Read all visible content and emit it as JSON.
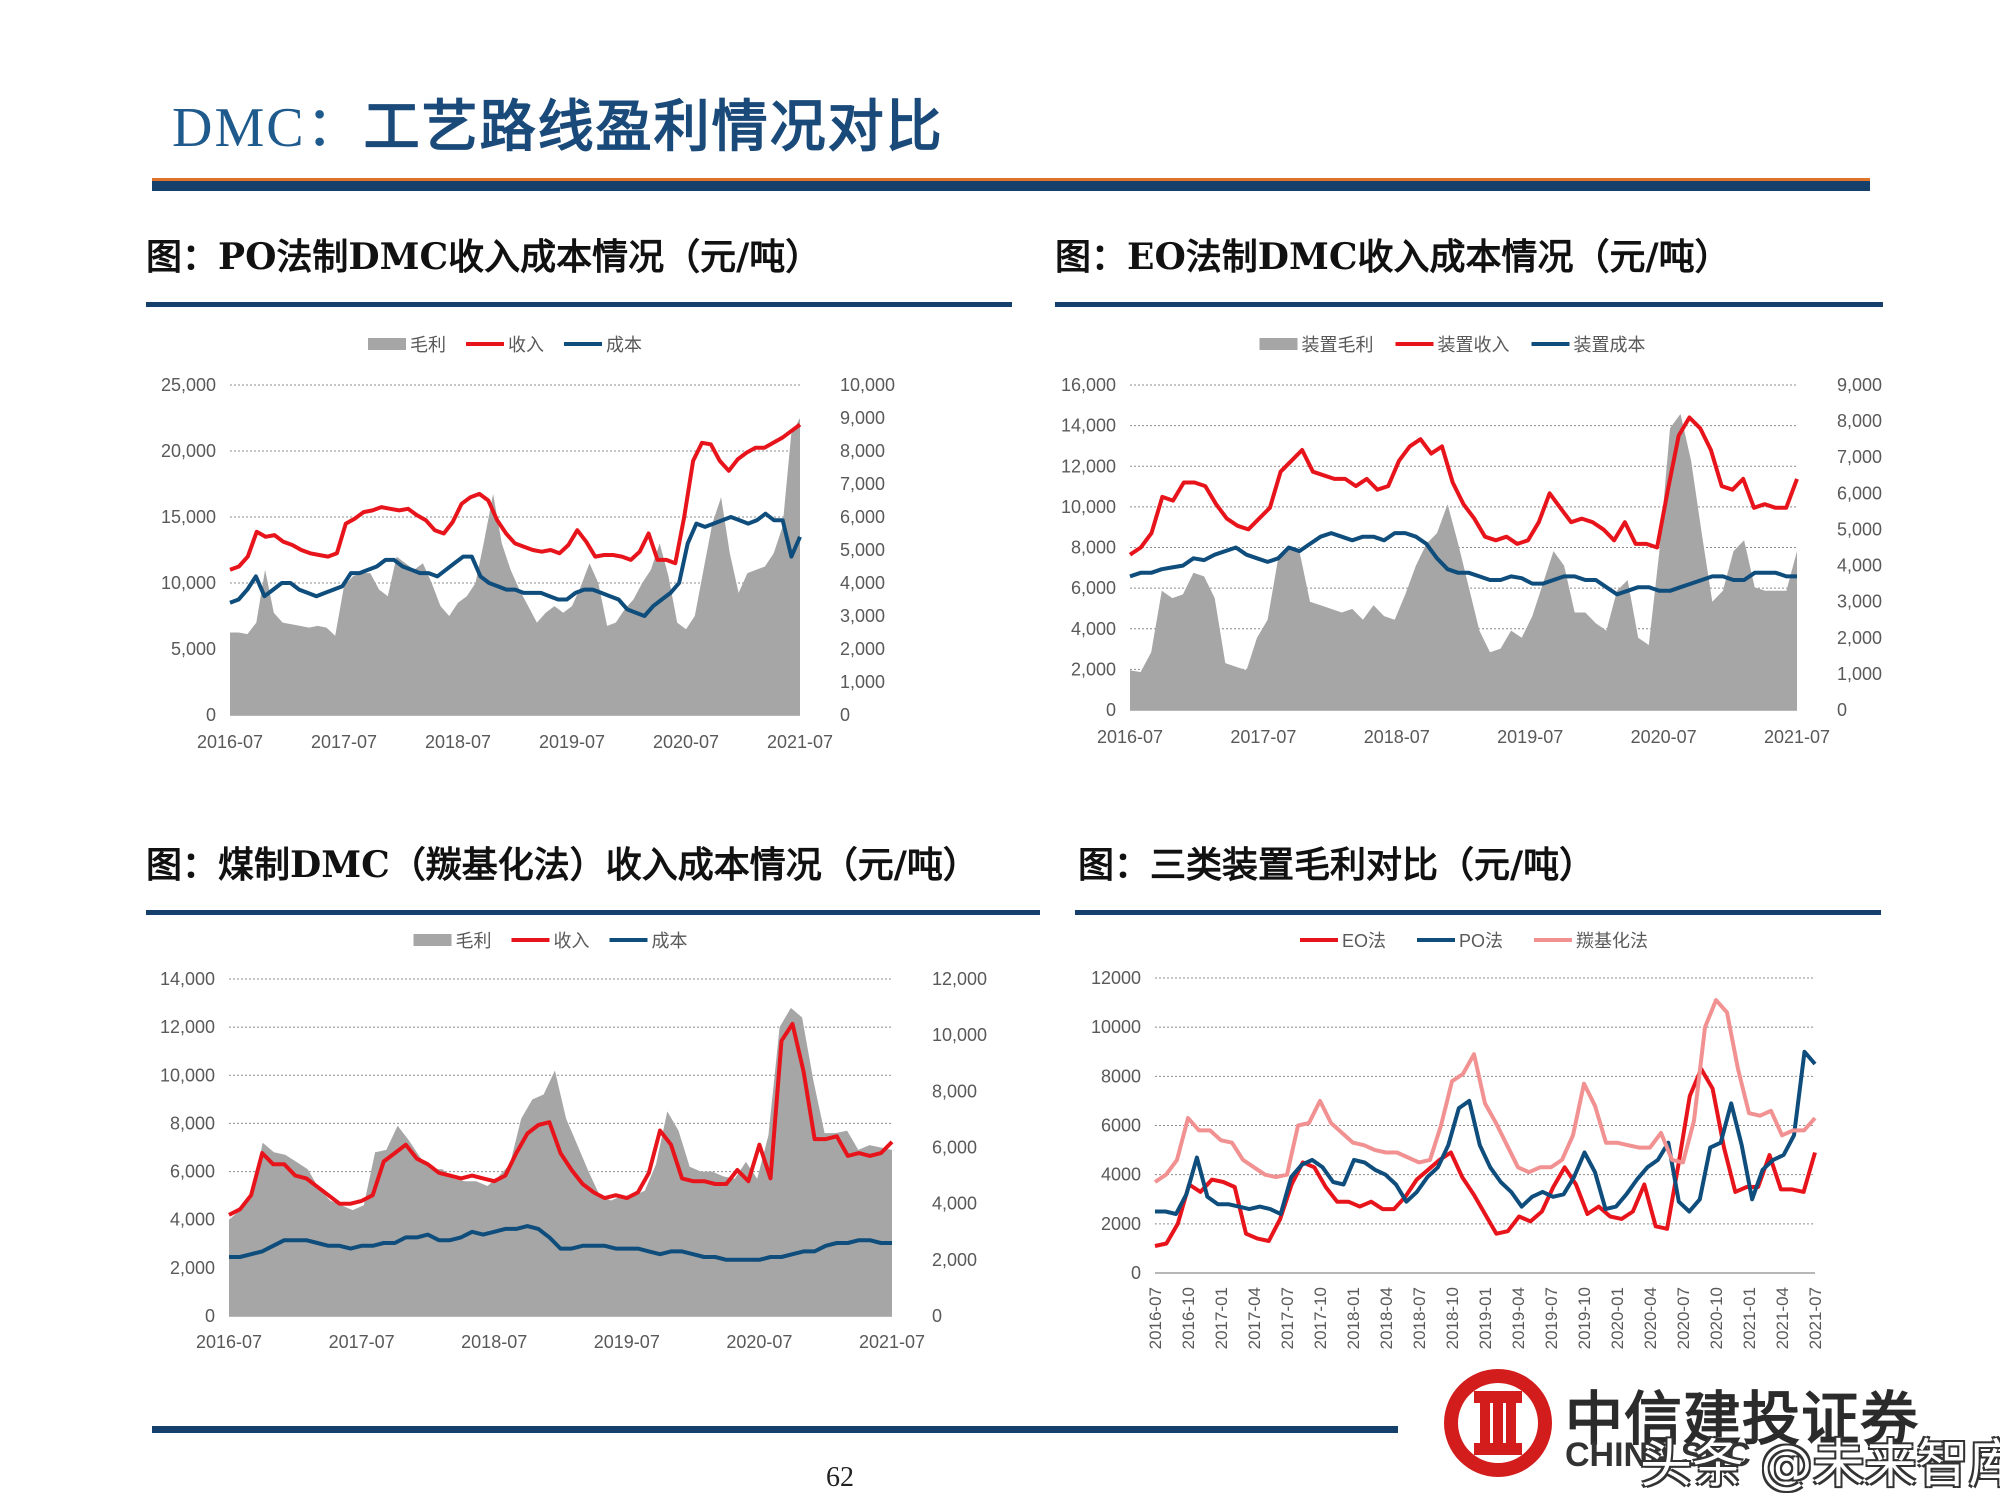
{
  "page": {
    "title_prefix": "DMC：",
    "title_main": "工艺路线盈利情况对比",
    "page_number": "62",
    "logo_cn": "中信建投证券",
    "logo_en": "CHINA SEC",
    "watermark": "头条 @未来智库"
  },
  "colors": {
    "accent": "#15406b",
    "red": "#e8141b",
    "blue": "#0e4d7c",
    "gray": "#a6a6a6",
    "pink": "#f19191"
  },
  "chart_data": [
    {
      "id": "po",
      "title": "图：PO法制DMC收入成本情况（元/吨）",
      "type": "area",
      "legend": [
        "毛利",
        "收入",
        "成本"
      ],
      "legend_position": "top",
      "x_ticks": [
        "2016-07",
        "2017-07",
        "2018-07",
        "2019-07",
        "2020-07",
        "2021-07"
      ],
      "x_start": "2016-07",
      "left_axis": {
        "min": 0,
        "max": 25000,
        "ticks": [
          "0",
          "5,000",
          "10,000",
          "15,000",
          "20,000",
          "25,000"
        ]
      },
      "right_axis": {
        "min": 0,
        "max": 10000,
        "ticks": [
          "0",
          "1,000",
          "2,000",
          "3,000",
          "4,000",
          "5,000",
          "6,000",
          "7,000",
          "8,000",
          "9,000",
          "10,000"
        ]
      },
      "grid": true,
      "area": {
        "name": "毛利",
        "axis": "right",
        "values": [
          2500,
          2500,
          2450,
          2800,
          4400,
          3100,
          2800,
          2750,
          2700,
          2650,
          2700,
          2650,
          2400,
          3900,
          4200,
          4300,
          4300,
          3800,
          3600,
          4800,
          4600,
          4400,
          4600,
          4000,
          3300,
          3000,
          3400,
          3600,
          4000,
          5300,
          6700,
          5200,
          4400,
          3800,
          3300,
          2800,
          3100,
          3300,
          3100,
          3300,
          3900,
          4600,
          4000,
          2700,
          2800,
          3200,
          3500,
          4000,
          4400,
          5200,
          4200,
          2800,
          2600,
          3000,
          4400,
          5800,
          6600,
          4900,
          3700,
          4300,
          4400,
          4500,
          4900,
          5700,
          8500,
          9000
        ]
      },
      "series": [
        {
          "name": "收入",
          "axis": "right",
          "color": "#e8141b",
          "values": [
            4400,
            4500,
            4800,
            5550,
            5400,
            5450,
            5250,
            5150,
            5000,
            4900,
            4850,
            4800,
            4900,
            5800,
            5950,
            6150,
            6200,
            6300,
            6250,
            6200,
            6250,
            6050,
            5900,
            5600,
            5500,
            5850,
            6400,
            6600,
            6700,
            6500,
            5900,
            5500,
            5200,
            5100,
            5000,
            4950,
            5000,
            4900,
            5150,
            5600,
            5250,
            4800,
            4850,
            4850,
            4800,
            4700,
            4950,
            5500,
            4700,
            4700,
            4600,
            6000,
            7700,
            8250,
            8200,
            7700,
            7400,
            7750,
            7950,
            8100,
            8100,
            8250,
            8400,
            8600,
            8800
          ]
        },
        {
          "name": "成本",
          "axis": "right",
          "color": "#0e4d7c",
          "values": [
            3400,
            3500,
            3800,
            4200,
            3600,
            3800,
            4000,
            4000,
            3800,
            3700,
            3600,
            3700,
            3800,
            3900,
            4300,
            4300,
            4400,
            4500,
            4700,
            4700,
            4500,
            4400,
            4300,
            4300,
            4200,
            4400,
            4600,
            4800,
            4800,
            4200,
            4000,
            3900,
            3800,
            3800,
            3700,
            3700,
            3700,
            3600,
            3500,
            3500,
            3700,
            3800,
            3800,
            3700,
            3600,
            3500,
            3200,
            3100,
            3000,
            3300,
            3500,
            3700,
            4000,
            5200,
            5800,
            5700,
            5800,
            5900,
            6000,
            5900,
            5800,
            5900,
            6100,
            5900,
            5900,
            4800,
            5400
          ]
        }
      ]
    },
    {
      "id": "eo",
      "title": "图：EO法制DMC收入成本情况（元/吨）",
      "type": "area",
      "legend": [
        "装置毛利",
        "装置收入",
        "装置成本"
      ],
      "legend_position": "top",
      "x_ticks": [
        "2016-07",
        "2017-07",
        "2018-07",
        "2019-07",
        "2020-07",
        "2021-07"
      ],
      "x_start": "2016-07",
      "left_axis": {
        "min": 0,
        "max": 16000,
        "ticks": [
          "0",
          "2,000",
          "4,000",
          "6,000",
          "8,000",
          "10,000",
          "12,000",
          "14,000",
          "16,000"
        ]
      },
      "right_axis": {
        "min": 0,
        "max": 9000,
        "ticks": [
          "0",
          "1,000",
          "2,000",
          "3,000",
          "4,000",
          "5,000",
          "6,000",
          "7,000",
          "8,000",
          "9,000"
        ]
      },
      "grid": true,
      "area": {
        "name": "装置毛利",
        "axis": "right",
        "values": [
          1100,
          1050,
          1600,
          3300,
          3100,
          3200,
          3800,
          3700,
          3100,
          1300,
          1200,
          1100,
          2000,
          2500,
          4200,
          4500,
          4400,
          3000,
          2900,
          2800,
          2700,
          2800,
          2500,
          2900,
          2600,
          2500,
          3200,
          4000,
          4600,
          4900,
          5700,
          4600,
          3400,
          2200,
          1600,
          1700,
          2200,
          2000,
          2600,
          3500,
          4400,
          4000,
          2700,
          2700,
          2400,
          2200,
          3300,
          3600,
          2000,
          1800,
          4400,
          7800,
          8200,
          6900,
          4900,
          3000,
          3300,
          4400,
          4700,
          3400,
          3300,
          3300,
          3300,
          4400
        ]
      },
      "series": [
        {
          "name": "装置收入",
          "axis": "right",
          "color": "#e8141b",
          "values": [
            4300,
            4500,
            4900,
            5900,
            5800,
            6300,
            6300,
            6200,
            5700,
            5300,
            5100,
            5000,
            5300,
            5600,
            6600,
            6900,
            7200,
            6600,
            6500,
            6400,
            6400,
            6200,
            6400,
            6100,
            6200,
            6900,
            7300,
            7500,
            7100,
            7300,
            6300,
            5700,
            5300,
            4800,
            4700,
            4800,
            4600,
            4700,
            5200,
            6000,
            5600,
            5200,
            5300,
            5200,
            5000,
            4700,
            5200,
            4600,
            4600,
            4500,
            6100,
            7600,
            8100,
            7800,
            7200,
            6200,
            6100,
            6400,
            5600,
            5700,
            5600,
            5600,
            6400
          ]
        },
        {
          "name": "装置成本",
          "axis": "right",
          "color": "#0e4d7c",
          "values": [
            3700,
            3800,
            3800,
            3900,
            3950,
            4000,
            4200,
            4150,
            4300,
            4400,
            4500,
            4300,
            4200,
            4100,
            4200,
            4500,
            4400,
            4600,
            4800,
            4900,
            4800,
            4700,
            4800,
            4800,
            4700,
            4900,
            4900,
            4800,
            4600,
            4200,
            3900,
            3800,
            3800,
            3700,
            3600,
            3600,
            3700,
            3650,
            3500,
            3500,
            3600,
            3700,
            3700,
            3600,
            3600,
            3400,
            3200,
            3300,
            3400,
            3400,
            3300,
            3300,
            3400,
            3500,
            3600,
            3700,
            3700,
            3600,
            3600,
            3800,
            3800,
            3800,
            3700,
            3700
          ]
        }
      ]
    },
    {
      "id": "coal",
      "title": "图：煤制DMC（羰基化法）收入成本情况（元/吨）",
      "type": "area",
      "legend": [
        "毛利",
        "收入",
        "成本"
      ],
      "legend_position": "top",
      "x_ticks": [
        "2016-07",
        "2017-07",
        "2018-07",
        "2019-07",
        "2020-07",
        "2021-07"
      ],
      "x_start": "2016-07",
      "left_axis": {
        "min": 0,
        "max": 14000,
        "ticks": [
          "0",
          "2,000",
          "4,000",
          "6,000",
          "8,000",
          "10,000",
          "12,000",
          "14,000"
        ]
      },
      "right_axis": {
        "min": 0,
        "max": 12000,
        "ticks": [
          "0",
          "2,000",
          "4,000",
          "6,000",
          "8,000",
          "10,000",
          "12,000"
        ]
      },
      "grid": true,
      "area": {
        "name": "毛利",
        "axis": "left",
        "values": [
          4000,
          4400,
          5000,
          7200,
          6800,
          6700,
          6400,
          6100,
          5300,
          4800,
          4600,
          4400,
          4600,
          6800,
          6900,
          7900,
          7300,
          6600,
          6100,
          6100,
          5700,
          5600,
          5600,
          5400,
          5800,
          6300,
          8200,
          9000,
          9200,
          10200,
          8200,
          7100,
          6000,
          5000,
          4800,
          5000,
          5000,
          5200,
          6300,
          8500,
          7700,
          6200,
          6000,
          6000,
          5800,
          5700,
          6400,
          5700,
          7500,
          12000,
          12800,
          12400,
          9800,
          7600,
          7600,
          7700,
          6900,
          7100,
          7000,
          6900
        ]
      },
      "series": [
        {
          "name": "收入",
          "axis": "right",
          "color": "#e8141b",
          "values": [
            3600,
            3800,
            4300,
            5800,
            5400,
            5400,
            5000,
            4900,
            4600,
            4300,
            4000,
            4000,
            4100,
            4300,
            5500,
            5800,
            6100,
            5600,
            5400,
            5100,
            5000,
            4900,
            5000,
            4900,
            4800,
            5000,
            5800,
            6500,
            6800,
            6900,
            5800,
            5200,
            4700,
            4400,
            4200,
            4300,
            4200,
            4400,
            5100,
            6600,
            6100,
            4900,
            4800,
            4800,
            4700,
            4700,
            5200,
            4800,
            6100,
            4900,
            9800,
            10400,
            8700,
            6300,
            6300,
            6400,
            5700,
            5800,
            5700,
            5800,
            6200
          ]
        },
        {
          "name": "成本",
          "axis": "right",
          "color": "#0e4d7c",
          "values": [
            2100,
            2100,
            2200,
            2300,
            2500,
            2700,
            2700,
            2700,
            2600,
            2500,
            2500,
            2400,
            2500,
            2500,
            2600,
            2600,
            2800,
            2800,
            2900,
            2700,
            2700,
            2800,
            3000,
            2900,
            3000,
            3100,
            3100,
            3200,
            3100,
            2800,
            2400,
            2400,
            2500,
            2500,
            2500,
            2400,
            2400,
            2400,
            2300,
            2200,
            2300,
            2300,
            2200,
            2100,
            2100,
            2000,
            2000,
            2000,
            2000,
            2100,
            2100,
            2200,
            2300,
            2300,
            2500,
            2600,
            2600,
            2700,
            2700,
            2600,
            2600
          ]
        }
      ]
    },
    {
      "id": "margin",
      "title": "图：三类装置毛利对比（元/吨）",
      "type": "line",
      "legend": [
        "EO法",
        "PO法",
        "羰基化法"
      ],
      "legend_position": "top",
      "x_ticks": [
        "2016-07",
        "2016-10",
        "2017-01",
        "2017-04",
        "2017-07",
        "2017-10",
        "2018-01",
        "2018-04",
        "2018-07",
        "2018-10",
        "2019-01",
        "2019-04",
        "2019-07",
        "2019-10",
        "2020-01",
        "2020-04",
        "2020-07",
        "2020-10",
        "2021-01",
        "2021-04",
        "2021-07"
      ],
      "x_start": "2016-07",
      "left_axis": {
        "min": 0,
        "max": 12000,
        "ticks": [
          "0",
          "2000",
          "4000",
          "6000",
          "8000",
          "10000",
          "12000"
        ]
      },
      "grid": true,
      "series": [
        {
          "name": "EO法",
          "axis": "left",
          "color": "#e8141b",
          "values": [
            1100,
            1200,
            2000,
            3600,
            3300,
            3800,
            3700,
            3500,
            1600,
            1400,
            1300,
            2200,
            3600,
            4500,
            4300,
            3500,
            2900,
            2900,
            2700,
            2900,
            2600,
            2600,
            3100,
            3800,
            4200,
            4600,
            4900,
            3900,
            3200,
            2400,
            1600,
            1700,
            2300,
            2100,
            2500,
            3500,
            4300,
            3600,
            2400,
            2700,
            2300,
            2200,
            2500,
            3600,
            1900,
            1800,
            4400,
            7200,
            8300,
            7500,
            5100,
            3300,
            3500,
            3500,
            4800,
            3400,
            3400,
            3300,
            4900
          ]
        },
        {
          "name": "PO法",
          "axis": "left",
          "color": "#0e4d7c",
          "values": [
            2500,
            2500,
            2400,
            3200,
            4700,
            3100,
            2800,
            2800,
            2700,
            2600,
            2700,
            2600,
            2400,
            3900,
            4400,
            4600,
            4300,
            3700,
            3600,
            4600,
            4500,
            4200,
            4000,
            3600,
            2900,
            3300,
            3900,
            4300,
            5200,
            6700,
            7000,
            5200,
            4300,
            3700,
            3300,
            2700,
            3100,
            3300,
            3100,
            3200,
            3900,
            4900,
            4100,
            2600,
            2700,
            3200,
            3800,
            4300,
            4600,
            5300,
            2900,
            2500,
            3000,
            5100,
            5300,
            6900,
            5200,
            3000,
            4200,
            4600,
            4800,
            5600,
            9000,
            8500
          ]
        },
        {
          "name": "羰基化法",
          "axis": "left",
          "color": "#f19191",
          "values": [
            3700,
            4000,
            4600,
            6300,
            5800,
            5800,
            5400,
            5300,
            4600,
            4300,
            4000,
            3900,
            4000,
            6000,
            6100,
            7000,
            6100,
            5700,
            5300,
            5200,
            5000,
            4900,
            4900,
            4700,
            4500,
            4600,
            6000,
            7800,
            8100,
            8900,
            6900,
            6100,
            5200,
            4300,
            4100,
            4300,
            4300,
            4600,
            5600,
            7700,
            6800,
            5300,
            5300,
            5200,
            5100,
            5100,
            5700,
            4600,
            4500,
            6200,
            10000,
            11100,
            10600,
            8300,
            6500,
            6400,
            6600,
            5600,
            5800,
            5800,
            6300
          ]
        }
      ]
    }
  ]
}
